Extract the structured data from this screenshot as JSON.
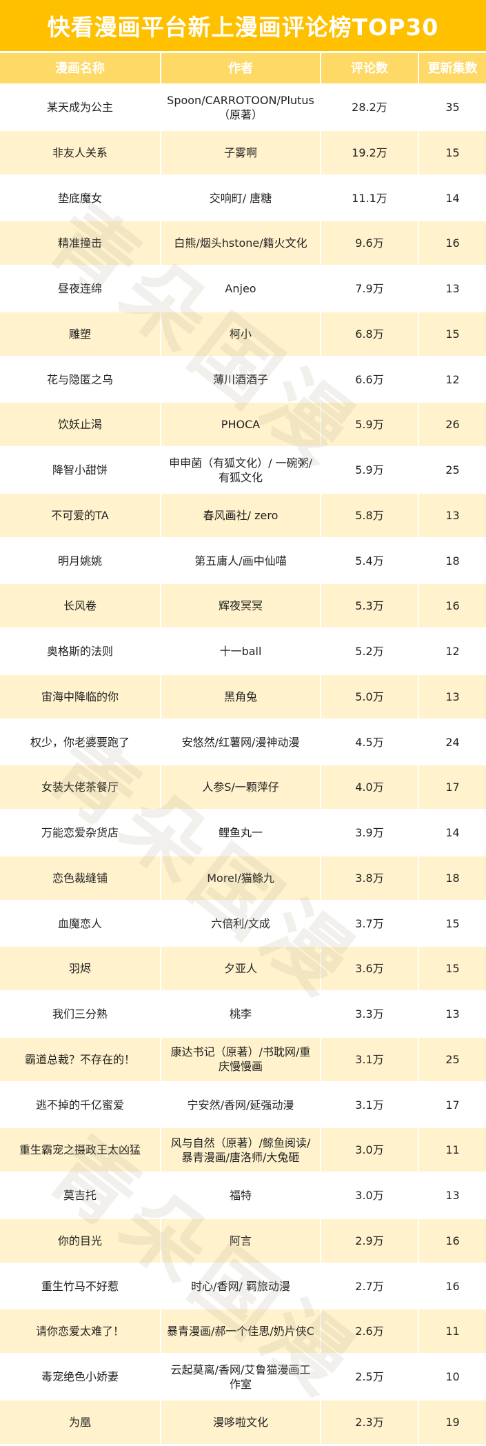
{
  "title": "快看漫画平台新上漫画评论榜TOP30",
  "watermark": "青朵国漫",
  "colors": {
    "title_bg": "#ffc000",
    "header_bg": "#ffd966",
    "row_alt_bg": "#fff2cc"
  },
  "columns": [
    "漫画名称",
    "作者",
    "评论数",
    "更新集数"
  ],
  "rows": [
    [
      "某天成为公主",
      "Spoon/CARROTOON/Plutus（原著）",
      "28.2万",
      "35"
    ],
    [
      "非友人关系",
      "子雾啊",
      "19.2万",
      "15"
    ],
    [
      "垫底魔女",
      "交响町/ 唐糖",
      "11.1万",
      "14"
    ],
    [
      "精准撞击",
      "白熊/烟头hstone/籍火文化",
      "9.6万",
      "16"
    ],
    [
      "昼夜连绵",
      "Anjeo",
      "7.9万",
      "13"
    ],
    [
      "雕塑",
      "柯小",
      "6.8万",
      "15"
    ],
    [
      "花与隐匿之乌",
      "薄川酒酒子",
      "6.6万",
      "12"
    ],
    [
      "饮妖止渴",
      "PHOCA",
      "5.9万",
      "26"
    ],
    [
      "降智小甜饼",
      "申申菌（有狐文化）/ 一碗粥/有狐文化",
      "5.9万",
      "25"
    ],
    [
      "不可爱的TA",
      "春风画社/ zero",
      "5.8万",
      "13"
    ],
    [
      "明月姚姚",
      "第五庸人/画中仙喵",
      "5.4万",
      "18"
    ],
    [
      "长风卷",
      "辉夜冥冥",
      "5.3万",
      "16"
    ],
    [
      "奥格斯的法则",
      "十一ball",
      "5.2万",
      "12"
    ],
    [
      "宙海中降临的你",
      "黑角兔",
      "5.0万",
      "13"
    ],
    [
      "权少，你老婆要跑了",
      "安悠然/红薯网/漫神动漫",
      "4.5万",
      "24"
    ],
    [
      "女装大佬茶餐厅",
      "人参S/一颗萍仔",
      "4.0万",
      "17"
    ],
    [
      "万能恋爱杂货店",
      "鲤鱼丸一",
      "3.9万",
      "14"
    ],
    [
      "恋色裁缝铺",
      "Morel/猫鲦九",
      "3.8万",
      "18"
    ],
    [
      "血魔恋人",
      "六倍利/文成",
      "3.7万",
      "15"
    ],
    [
      "羽烬",
      "夕亚人",
      "3.6万",
      "15"
    ],
    [
      "我们三分熟",
      "桃李",
      "3.3万",
      "13"
    ],
    [
      "霸道总裁？不存在的！",
      "康达书记（原著）/书耽网/重庆慢慢画",
      "3.1万",
      "25"
    ],
    [
      "逃不掉的千亿蜜爱",
      "宁安然/香网/延强动漫",
      "3.1万",
      "17"
    ],
    [
      "重生霸宠之摄政王太凶猛",
      "风与自然（原著）/鲸鱼阅读/暴青漫画/唐洛师/大兔砸",
      "3.0万",
      "11"
    ],
    [
      "莫吉托",
      "福特",
      "3.0万",
      "13"
    ],
    [
      "你的目光",
      "阿言",
      "2.9万",
      "16"
    ],
    [
      "重生竹马不好惹",
      "时心/香网/ 羁旅动漫",
      "2.7万",
      "16"
    ],
    [
      "请你恋爱太难了！",
      "暴青漫画/郝一个佳思/奶片侠C",
      "2.6万",
      "11"
    ],
    [
      "毒宠绝色小娇妻",
      "云起莫离/香网/艾鲁猫漫画工作室",
      "2.5万",
      "10"
    ],
    [
      "为凰",
      "漫哆啦文化",
      "2.3万",
      "19"
    ]
  ]
}
